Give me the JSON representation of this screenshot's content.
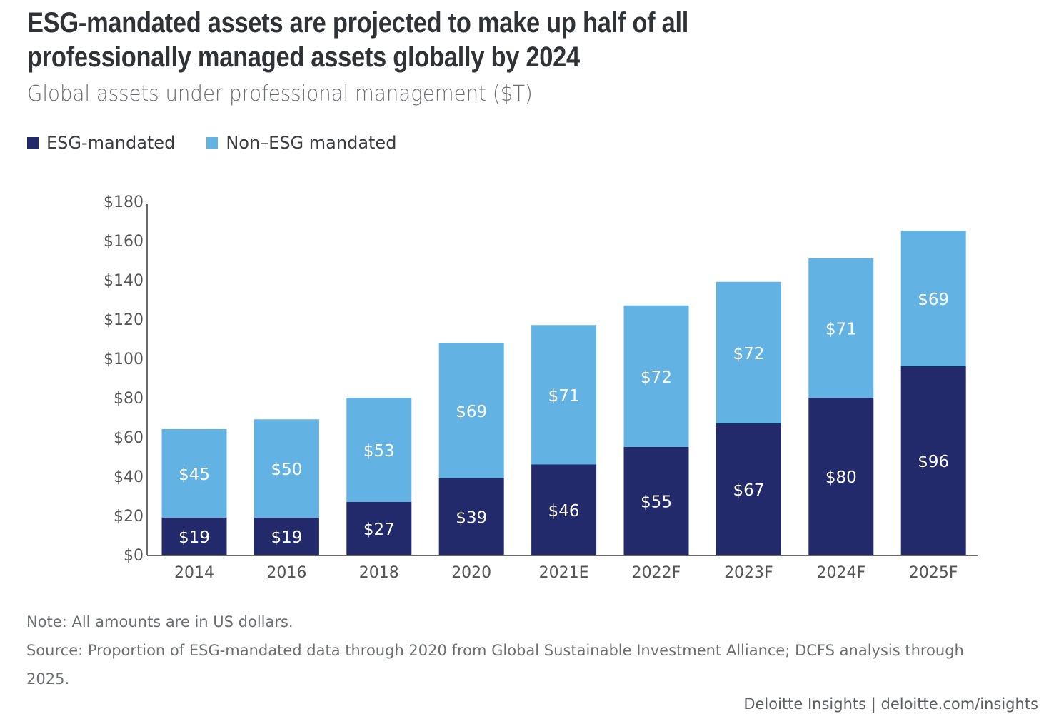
{
  "header": {
    "title": "ESG-mandated assets are projected to make up half of all professionally managed assets globally by 2024",
    "subtitle": "Global assets under professional management ($T)"
  },
  "legend": [
    {
      "label": "ESG-mandated",
      "color": "#232a6b"
    },
    {
      "label": "Non–ESG mandated",
      "color": "#62b3e4"
    }
  ],
  "chart_data": {
    "type": "bar",
    "stacked": true,
    "title": "ESG-mandated assets are projected to make up half of all professionally managed assets globally by 2024",
    "subtitle": "Global assets under professional management ($T)",
    "xlabel": "",
    "ylabel": "",
    "categories": [
      "2014",
      "2016",
      "2018",
      "2020",
      "2021E",
      "2022F",
      "2023F",
      "2024F",
      "2025F"
    ],
    "series": [
      {
        "name": "ESG-mandated",
        "color": "#232a6b",
        "values": [
          19,
          19,
          27,
          39,
          46,
          55,
          67,
          80,
          96
        ]
      },
      {
        "name": "Non–ESG mandated",
        "color": "#62b3e4",
        "values": [
          45,
          50,
          53,
          69,
          71,
          72,
          72,
          71,
          69
        ]
      }
    ],
    "data_labels": {
      "ESG-mandated": [
        "$19",
        "$19",
        "$27",
        "$39",
        "$46",
        "$55",
        "$67",
        "$80",
        "$96"
      ],
      "Non–ESG mandated": [
        "$45",
        "$50",
        "$53",
        "$69",
        "$71",
        "$72",
        "$72",
        "$71",
        "$69"
      ]
    },
    "ylim": [
      0,
      180
    ],
    "yticks": [
      0,
      20,
      40,
      60,
      80,
      100,
      120,
      140,
      160,
      180
    ],
    "ytick_labels": [
      "$0",
      "$20",
      "$40",
      "$60",
      "$80",
      "$100",
      "$120",
      "$140",
      "$160",
      "$180"
    ],
    "grid": false,
    "legend_position": "top-left",
    "label_color": "#ffffff",
    "axis_color": "#6b6b6b",
    "tick_label_color": "#555555"
  },
  "notes": {
    "note": "Note: All amounts are in US dollars.",
    "source": "Source: Proportion of ESG-mandated data through 2020 from Global Sustainable Investment Alliance; DCFS analysis through 2025."
  },
  "footer": {
    "credit": "Deloitte Insights | deloitte.com/insights"
  }
}
